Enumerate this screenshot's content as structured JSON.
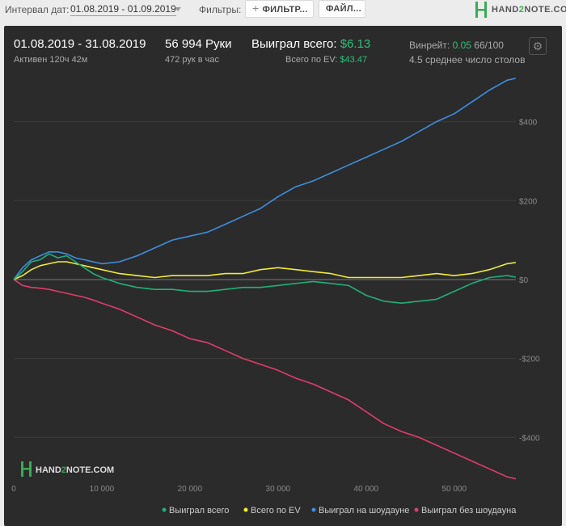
{
  "toolbar": {
    "date_interval_label": "Интервал дат:",
    "date_interval_value": "01.08.2019 - 01.09.2019",
    "filters_label": "Фильтры:",
    "filter_button": "ФИЛЬТР...",
    "file_button": "ФАЙЛ..."
  },
  "logo": {
    "text_a": "HAND",
    "text_b": "2",
    "text_c": "NOTE.COM"
  },
  "summary": {
    "period": "01.08.2019 - 31.08.2019",
    "active": "Активен 120ч 42м",
    "hands": "56 994 Руки",
    "hands_per_hour": "472 рук в час",
    "won_label": "Выиграл всего:",
    "won_value": "$6.13",
    "ev_label": "Всего по EV:",
    "ev_value": "$43.47",
    "winrate_label": "Винрейт:",
    "winrate_value": "0.05",
    "winrate_suffix": "66/100",
    "tables": "4.5 среднее число столов"
  },
  "colors": {
    "background": "#2b2b2b",
    "won_total": "#20b07a",
    "ev_total": "#f0ec3a",
    "showdown": "#3d8fe0",
    "non_showdown": "#e23c6e",
    "grid": "#3c3c3c",
    "axis_text": "#8a8a8a"
  },
  "chart_data": {
    "type": "line",
    "xlabel": "",
    "ylabel": "",
    "xlim": [
      0,
      57000
    ],
    "ylim": [
      -510,
      520
    ],
    "x_ticks": [
      0,
      10000,
      20000,
      30000,
      40000,
      50000
    ],
    "x_tick_labels": [
      "0",
      "10 000",
      "20 000",
      "30 000",
      "40 000",
      "50 000"
    ],
    "y_ticks": [
      400,
      200,
      0,
      -200,
      -400
    ],
    "y_tick_labels": [
      "$400",
      "$200",
      "$0",
      "-$200",
      "-$400"
    ],
    "legend_position": "bottom-right",
    "x": [
      0,
      1000,
      2000,
      3000,
      4000,
      5000,
      6000,
      7000,
      8000,
      9000,
      10000,
      12000,
      14000,
      16000,
      18000,
      20000,
      22000,
      24000,
      26000,
      28000,
      30000,
      32000,
      34000,
      36000,
      38000,
      40000,
      42000,
      44000,
      46000,
      48000,
      50000,
      52000,
      54000,
      56000,
      56994
    ],
    "series": [
      {
        "name": "Выиграл всего",
        "color": "#20b07a",
        "values": [
          0,
          20,
          45,
          50,
          65,
          55,
          60,
          45,
          30,
          15,
          5,
          -10,
          -20,
          -25,
          -25,
          -30,
          -30,
          -25,
          -20,
          -20,
          -15,
          -10,
          -5,
          -10,
          -15,
          -40,
          -55,
          -60,
          -55,
          -50,
          -30,
          -10,
          5,
          10,
          6
        ]
      },
      {
        "name": "Всего по EV",
        "color": "#f0ec3a",
        "values": [
          0,
          10,
          25,
          35,
          40,
          45,
          45,
          40,
          35,
          30,
          25,
          15,
          10,
          5,
          10,
          10,
          10,
          15,
          15,
          25,
          30,
          25,
          20,
          15,
          5,
          5,
          5,
          5,
          10,
          15,
          10,
          15,
          25,
          40,
          43
        ]
      },
      {
        "name": "Выиграл на шоудауне",
        "color": "#3d8fe0",
        "values": [
          0,
          30,
          50,
          60,
          70,
          70,
          65,
          55,
          50,
          45,
          40,
          45,
          60,
          80,
          100,
          110,
          120,
          140,
          160,
          180,
          210,
          235,
          250,
          270,
          290,
          310,
          330,
          350,
          375,
          400,
          420,
          450,
          480,
          505,
          510
        ]
      },
      {
        "name": "Выиграл без шоудауна",
        "color": "#e23c6e",
        "values": [
          0,
          -15,
          -20,
          -22,
          -25,
          -30,
          -35,
          -40,
          -45,
          -52,
          -60,
          -75,
          -95,
          -115,
          -130,
          -150,
          -160,
          -180,
          -200,
          -215,
          -230,
          -250,
          -265,
          -285,
          -305,
          -335,
          -365,
          -385,
          -400,
          -420,
          -440,
          -460,
          -480,
          -500,
          -505
        ]
      }
    ]
  }
}
